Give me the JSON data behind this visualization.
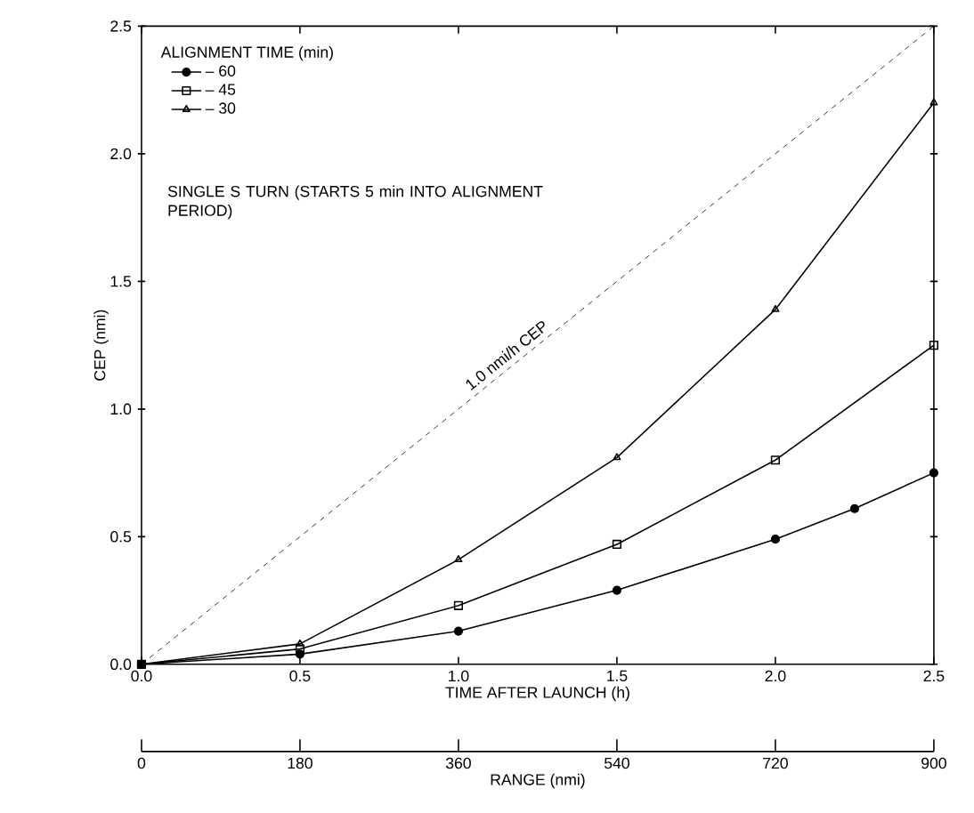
{
  "chart_data": {
    "type": "line",
    "xlabel": "TIME AFTER LAUNCH (h)",
    "ylabel": "CEP (nmi)",
    "x2label": "RANGE (nmi)",
    "legend_title": "ALIGNMENT TIME (min)",
    "legend": "top left",
    "xlim": [
      0,
      2.5
    ],
    "ylim": [
      0,
      2.5
    ],
    "x2lim": [
      0,
      900
    ],
    "xticks": [
      {
        "value": 0,
        "label": "0.0"
      },
      {
        "value": 0.5,
        "label": "0.5"
      },
      {
        "value": 1,
        "label": "1.0"
      },
      {
        "value": 1.5,
        "label": "1.5"
      },
      {
        "value": 2,
        "label": "2.0"
      },
      {
        "value": 2.5,
        "label": "2.5"
      }
    ],
    "yticks": [
      {
        "value": 0,
        "label": "0.0"
      },
      {
        "value": 0.5,
        "label": "0.5"
      },
      {
        "value": 1,
        "label": "1.0"
      },
      {
        "value": 1.5,
        "label": "1.5"
      },
      {
        "value": 2,
        "label": "2.0"
      },
      {
        "value": 2.5,
        "label": "2.5"
      }
    ],
    "x2ticks": [
      0,
      180,
      360,
      540,
      720,
      900
    ],
    "annotations": [
      "SINGLE S TURN (STARTS 5 min INTO ALIGNMENT PERIOD)"
    ],
    "series": [
      {
        "name": "– 60",
        "color": "#000000",
        "marker": "circle",
        "x": [
          0,
          0.5,
          1,
          1.5,
          2,
          2.25,
          2.5
        ],
        "values": [
          0,
          0.04,
          0.13,
          0.29,
          0.49,
          0.61,
          0.75
        ]
      },
      {
        "name": "– 45",
        "color": "#000000",
        "marker": "square",
        "x": [
          0,
          0.5,
          1,
          1.5,
          2,
          2.5
        ],
        "values": [
          0,
          0.06,
          0.23,
          0.47,
          0.8,
          1.25
        ]
      },
      {
        "name": "– 30",
        "color": "#000000",
        "marker": "triangle",
        "x": [
          0,
          0.5,
          1,
          1.5,
          2,
          2.5
        ],
        "values": [
          0,
          0.08,
          0.41,
          0.81,
          1.39,
          2.2
        ]
      },
      {
        "name": "1.0 nmi/h CEP",
        "color": "#000000",
        "marker": "none",
        "line_style": "dashed",
        "x": [
          0,
          2.5
        ],
        "values": [
          0,
          2.5
        ]
      }
    ]
  }
}
